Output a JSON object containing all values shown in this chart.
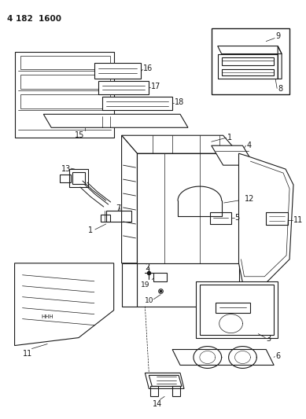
{
  "title": "4 182  1600",
  "bg_color": "#ffffff",
  "line_color": "#1a1a1a",
  "fig_width": 3.89,
  "fig_height": 5.33,
  "dpi": 100
}
